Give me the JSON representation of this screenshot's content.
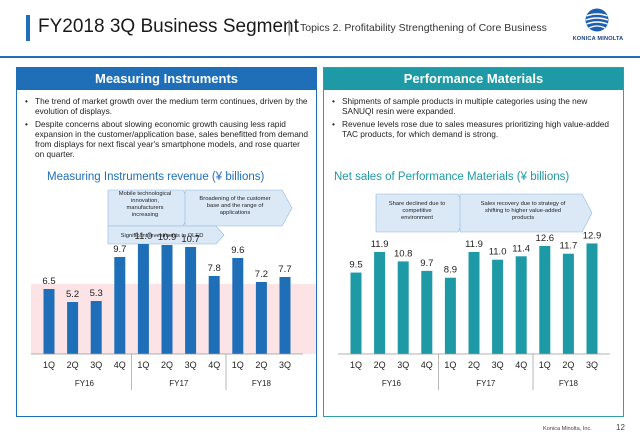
{
  "header": {
    "title": "FY2018 3Q Business Segment",
    "separator": "|",
    "subtitle": "Topics 2. Profitability Strengthening of Core Business",
    "logo_text": "KONICA MINOLTA",
    "brand_color": "#1f6fb8"
  },
  "left_panel": {
    "heading": "Measuring  Instruments",
    "bullets": [
      "The trend of market growth over the medium term continues, driven by the evolution of displays.",
      "Despite concerns about  slowing economic growth causing less rapid expansion in the customer/application base, sales benefitted from demand from displays for next fiscal year's smartphone models, and rose quarter on quarter."
    ],
    "chart_title": "Measuring Instruments revenue (¥ billions)",
    "callouts": {
      "mobile": [
        "Mobile technological",
        "innovation,",
        "manufacturers",
        "increasing"
      ],
      "broadening": [
        "Broadening of the customer",
        "base and the range of",
        "applications"
      ],
      "oled": "Significant investments in OLED"
    }
  },
  "right_panel": {
    "heading": "Performance Materials",
    "bullets": [
      "Shipments of sample products in multiple categories using the new SANUQI resin were expanded.",
      "Revenue levels rose due to sales measures prioritizing high value-added TAC products, for which demand is strong."
    ],
    "chart_title": "Net sales of Performance Materials (¥ billions)",
    "callouts": {
      "share": [
        "Share declined due to",
        "competitive",
        "environment"
      ],
      "recovery": [
        "Sales recovery due to strategy of",
        "shifting to higher value-added",
        "products"
      ]
    }
  },
  "chart_data": [
    {
      "type": "bar",
      "title": "Measuring Instruments revenue (¥ billions)",
      "categories": [
        "1Q",
        "2Q",
        "3Q",
        "4Q",
        "1Q",
        "2Q",
        "3Q",
        "4Q",
        "1Q",
        "2Q",
        "3Q"
      ],
      "groups": [
        {
          "label": "FY16",
          "quarters": 4
        },
        {
          "label": "FY17",
          "quarters": 4
        },
        {
          "label": "FY18",
          "quarters": 3
        }
      ],
      "values": [
        6.5,
        5.2,
        5.3,
        9.7,
        11.0,
        10.9,
        10.7,
        7.8,
        9.6,
        7.2,
        7.7
      ],
      "labels": [
        "6.5",
        "5.2",
        "5.3",
        "9.7",
        "11.0",
        "10.9",
        "10.7",
        "7.8",
        "9.6",
        "7.2",
        "7.7"
      ],
      "ylim": [
        0,
        12
      ],
      "bar_color": "#1f6fb8",
      "band_color": "#fbe3e6"
    },
    {
      "type": "bar",
      "title": "Net sales of Performance Materials (¥ billions)",
      "categories": [
        "1Q",
        "2Q",
        "3Q",
        "4Q",
        "1Q",
        "2Q",
        "3Q",
        "4Q",
        "1Q",
        "2Q",
        "3Q"
      ],
      "groups": [
        {
          "label": "FY16",
          "quarters": 4
        },
        {
          "label": "FY17",
          "quarters": 4
        },
        {
          "label": "FY18",
          "quarters": 3
        }
      ],
      "values": [
        9.5,
        11.9,
        10.8,
        9.7,
        8.9,
        11.9,
        11.0,
        11.4,
        12.6,
        11.7,
        12.9
      ],
      "labels": [
        "9.5",
        "11.9",
        "10.8",
        "9.7",
        "8.9",
        "11.9",
        "11.0",
        "11.4",
        "12.6",
        "11.7",
        "12.9"
      ],
      "ylim": [
        0,
        14
      ],
      "bar_color": "#1e9aa6"
    }
  ],
  "footer": {
    "brand": "Konica Minolta, Inc.",
    "page_number": "12"
  }
}
